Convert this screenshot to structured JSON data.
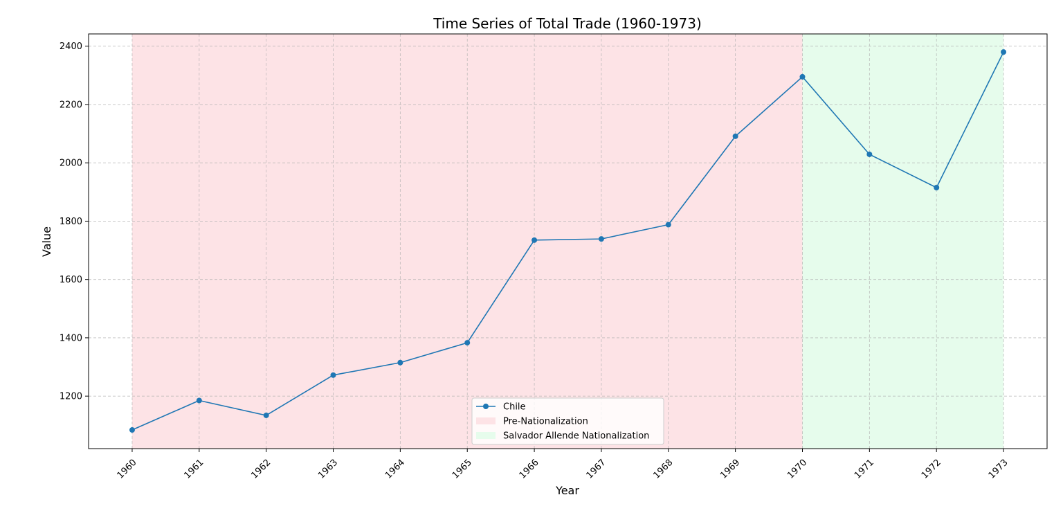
{
  "chart_data": {
    "type": "line",
    "title": "Time Series of Total Trade (1960-1973)",
    "xlabel": "Year",
    "ylabel": "Value",
    "x": [
      1960,
      1961,
      1962,
      1963,
      1964,
      1965,
      1966,
      1967,
      1968,
      1969,
      1970,
      1971,
      1972,
      1973
    ],
    "series": [
      {
        "name": "Chile",
        "color": "#1f77b4",
        "values": [
          1084,
          1185,
          1134,
          1272,
          1315,
          1383,
          1735,
          1739,
          1788,
          2091,
          2295,
          2029,
          1915,
          2380
        ]
      }
    ],
    "shaded_regions": [
      {
        "label": "Pre-Nationalization",
        "from": 1960,
        "to": 1970,
        "color": "#fde3e6"
      },
      {
        "label": "Salvador Allende Nationalization",
        "from": 1970,
        "to": 1973,
        "color": "#e6fcec"
      }
    ],
    "xticks": [
      "1960",
      "1961",
      "1962",
      "1963",
      "1964",
      "1965",
      "1966",
      "1967",
      "1968",
      "1969",
      "1970",
      "1971",
      "1972",
      "1973"
    ],
    "yticks": [
      1200,
      1400,
      1600,
      1800,
      2000,
      2200,
      2400
    ],
    "xlim": [
      1959.35,
      1973.65
    ],
    "ylim": [
      1020,
      2442
    ],
    "grid": true,
    "legend_position": "bottom-center"
  }
}
